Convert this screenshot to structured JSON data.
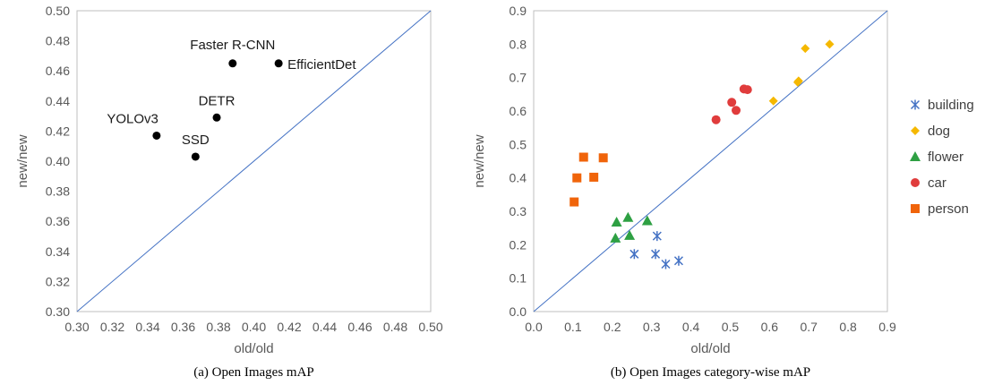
{
  "chart_data": [
    {
      "type": "scatter",
      "title": "",
      "caption": "(a) Open Images mAP",
      "xlabel": "old/old",
      "ylabel": "new/new",
      "xlim": [
        0.3,
        0.5
      ],
      "ylim": [
        0.3,
        0.5
      ],
      "xticks": [
        "0.30",
        "0.32",
        "0.34",
        "0.36",
        "0.38",
        "0.40",
        "0.42",
        "0.44",
        "0.46",
        "0.48",
        "0.50"
      ],
      "yticks": [
        "0.30",
        "0.32",
        "0.34",
        "0.36",
        "0.38",
        "0.40",
        "0.42",
        "0.44",
        "0.46",
        "0.48",
        "0.50"
      ],
      "grid": false,
      "reference_line": "y = x",
      "marker_color": "#000000",
      "line_color": "#4472c4",
      "points": [
        {
          "label": "Faster R-CNN",
          "x": 0.388,
          "y": 0.465
        },
        {
          "label": "EfficientDet",
          "x": 0.414,
          "y": 0.465
        },
        {
          "label": "DETR",
          "x": 0.379,
          "y": 0.429
        },
        {
          "label": "YOLOv3",
          "x": 0.345,
          "y": 0.417
        },
        {
          "label": "SSD",
          "x": 0.367,
          "y": 0.403
        }
      ]
    },
    {
      "type": "scatter",
      "title": "",
      "caption": "(b) Open Images category-wise mAP",
      "xlabel": "old/old",
      "ylabel": "new/new",
      "xlim": [
        0.0,
        0.9
      ],
      "ylim": [
        0.0,
        0.9
      ],
      "xticks": [
        "0.0",
        "0.1",
        "0.2",
        "0.3",
        "0.4",
        "0.5",
        "0.6",
        "0.7",
        "0.8",
        "0.9"
      ],
      "yticks": [
        "0.0",
        "0.1",
        "0.2",
        "0.3",
        "0.4",
        "0.5",
        "0.6",
        "0.7",
        "0.8",
        "0.9"
      ],
      "grid": false,
      "reference_line": "y = x",
      "line_color": "#4472c4",
      "legend_position": "right",
      "series": [
        {
          "name": "building",
          "marker": "asterisk",
          "color": "#4472c4",
          "points": [
            [
              0.256,
              0.172
            ],
            [
              0.31,
              0.172
            ],
            [
              0.314,
              0.226
            ],
            [
              0.336,
              0.142
            ],
            [
              0.369,
              0.152
            ]
          ]
        },
        {
          "name": "dog",
          "marker": "diamond",
          "color": "#f5b800",
          "points": [
            [
              0.61,
              0.63
            ],
            [
              0.672,
              0.686
            ],
            [
              0.674,
              0.69
            ],
            [
              0.691,
              0.787
            ],
            [
              0.753,
              0.8
            ]
          ]
        },
        {
          "name": "flower",
          "marker": "triangle",
          "color": "#2ea043",
          "points": [
            [
              0.208,
              0.22
            ],
            [
              0.211,
              0.268
            ],
            [
              0.24,
              0.282
            ],
            [
              0.244,
              0.228
            ],
            [
              0.289,
              0.272
            ]
          ]
        },
        {
          "name": "car",
          "marker": "circle",
          "color": "#e03c3c",
          "points": [
            [
              0.464,
              0.574
            ],
            [
              0.504,
              0.626
            ],
            [
              0.515,
              0.602
            ],
            [
              0.535,
              0.666
            ],
            [
              0.544,
              0.664
            ]
          ]
        },
        {
          "name": "person",
          "marker": "square",
          "color": "#f0640a",
          "points": [
            [
              0.103,
              0.328
            ],
            [
              0.11,
              0.4
            ],
            [
              0.127,
              0.462
            ],
            [
              0.153,
              0.402
            ],
            [
              0.177,
              0.46
            ]
          ]
        }
      ]
    }
  ]
}
